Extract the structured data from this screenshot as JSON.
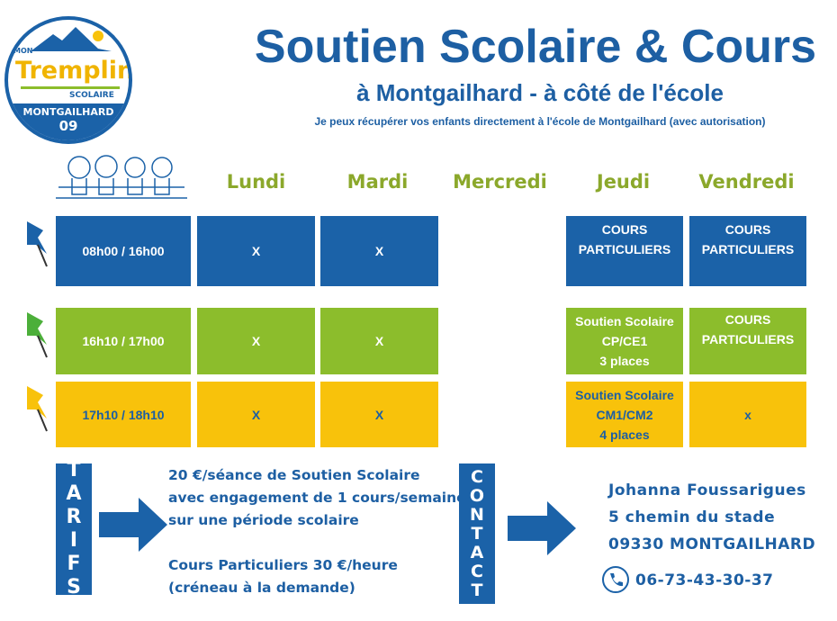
{
  "logo": {
    "top": "MON",
    "brand": "Tremplin",
    "sub": "SCOLAIRE",
    "town": "MONTGAILHARD",
    "dept": "09"
  },
  "header": {
    "title": "Soutien Scolaire & Cours",
    "subtitle": "à Montgailhard - à côté de l'école",
    "note": "Je peux récupérer vos enfants directement à l'école de Montgailhard (avec autorisation)"
  },
  "days": [
    "Lundi",
    "Mardi",
    "Mercredi",
    "Jeudi",
    "Vendredi"
  ],
  "rows": [
    {
      "time": "08h00 / 16h00",
      "color": "#1b62a8",
      "lundi": "X",
      "mardi": "X",
      "jeudi": [
        "COURS",
        "PARTICULIERS"
      ],
      "vendredi": [
        "COURS",
        "PARTICULIERS"
      ]
    },
    {
      "time": "16h10 / 17h00",
      "color": "#8cbd2c",
      "lundi": "X",
      "mardi": "X",
      "jeudi": [
        "Soutien Scolaire",
        "CP/CE1",
        "3 places"
      ],
      "vendredi": [
        "COURS",
        "PARTICULIERS"
      ]
    },
    {
      "time": "17h10 / 18h10",
      "color": "#f8c20b",
      "lundi": "X",
      "mardi": "X",
      "jeudi": [
        "Soutien Scolaire",
        "CM1/CM2",
        "4 places"
      ],
      "vendredi": [
        "x"
      ]
    }
  ],
  "tarifs": {
    "label": [
      "T",
      "A",
      "R",
      "I",
      "F",
      "S"
    ],
    "lines": [
      "20 €/séance de Soutien Scolaire",
      "avec engagement de 1 cours/semaine",
      "sur une période scolaire",
      "",
      "Cours Particuliers 30 €/heure",
      "(créneau à la demande)"
    ]
  },
  "contact": {
    "label": [
      "C",
      "O",
      "N",
      "T",
      "A",
      "C",
      "T"
    ],
    "name": "Johanna Foussarigues",
    "address": "5 chemin du stade",
    "city": "09330 MONTGAILHARD",
    "phone": "06-73-43-30-37"
  }
}
